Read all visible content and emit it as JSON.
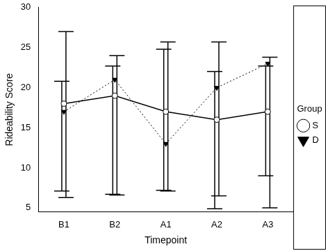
{
  "chart_data": {
    "type": "line",
    "x_label": "Timepoint",
    "y_label": "Rideability Score",
    "legend_title": "Group",
    "legend": "right",
    "grid": false,
    "categories": [
      "B1",
      "B2",
      "A1",
      "A2",
      "A3"
    ],
    "ylim": [
      4.5,
      30
    ],
    "yticks": [
      5,
      10,
      15,
      20,
      25,
      30
    ],
    "series": [
      {
        "name": "S",
        "color": "#000000",
        "marker": "circle",
        "line_style": "solid",
        "values": [
          18,
          19,
          17,
          16,
          17
        ],
        "error_low": [
          7.1,
          6.7,
          7.2,
          4.9,
          9
        ],
        "error_high": [
          20.8,
          22.7,
          24.8,
          22,
          22.7
        ]
      },
      {
        "name": "D",
        "color": "#000000",
        "marker": "triangle-down",
        "line_style": "dotted",
        "values": [
          17,
          21,
          13,
          20,
          23
        ],
        "error_low": [
          6.3,
          6.6,
          7.1,
          6.5,
          5
        ],
        "error_high": [
          27,
          24,
          25.7,
          25.7,
          23.8
        ]
      }
    ]
  }
}
